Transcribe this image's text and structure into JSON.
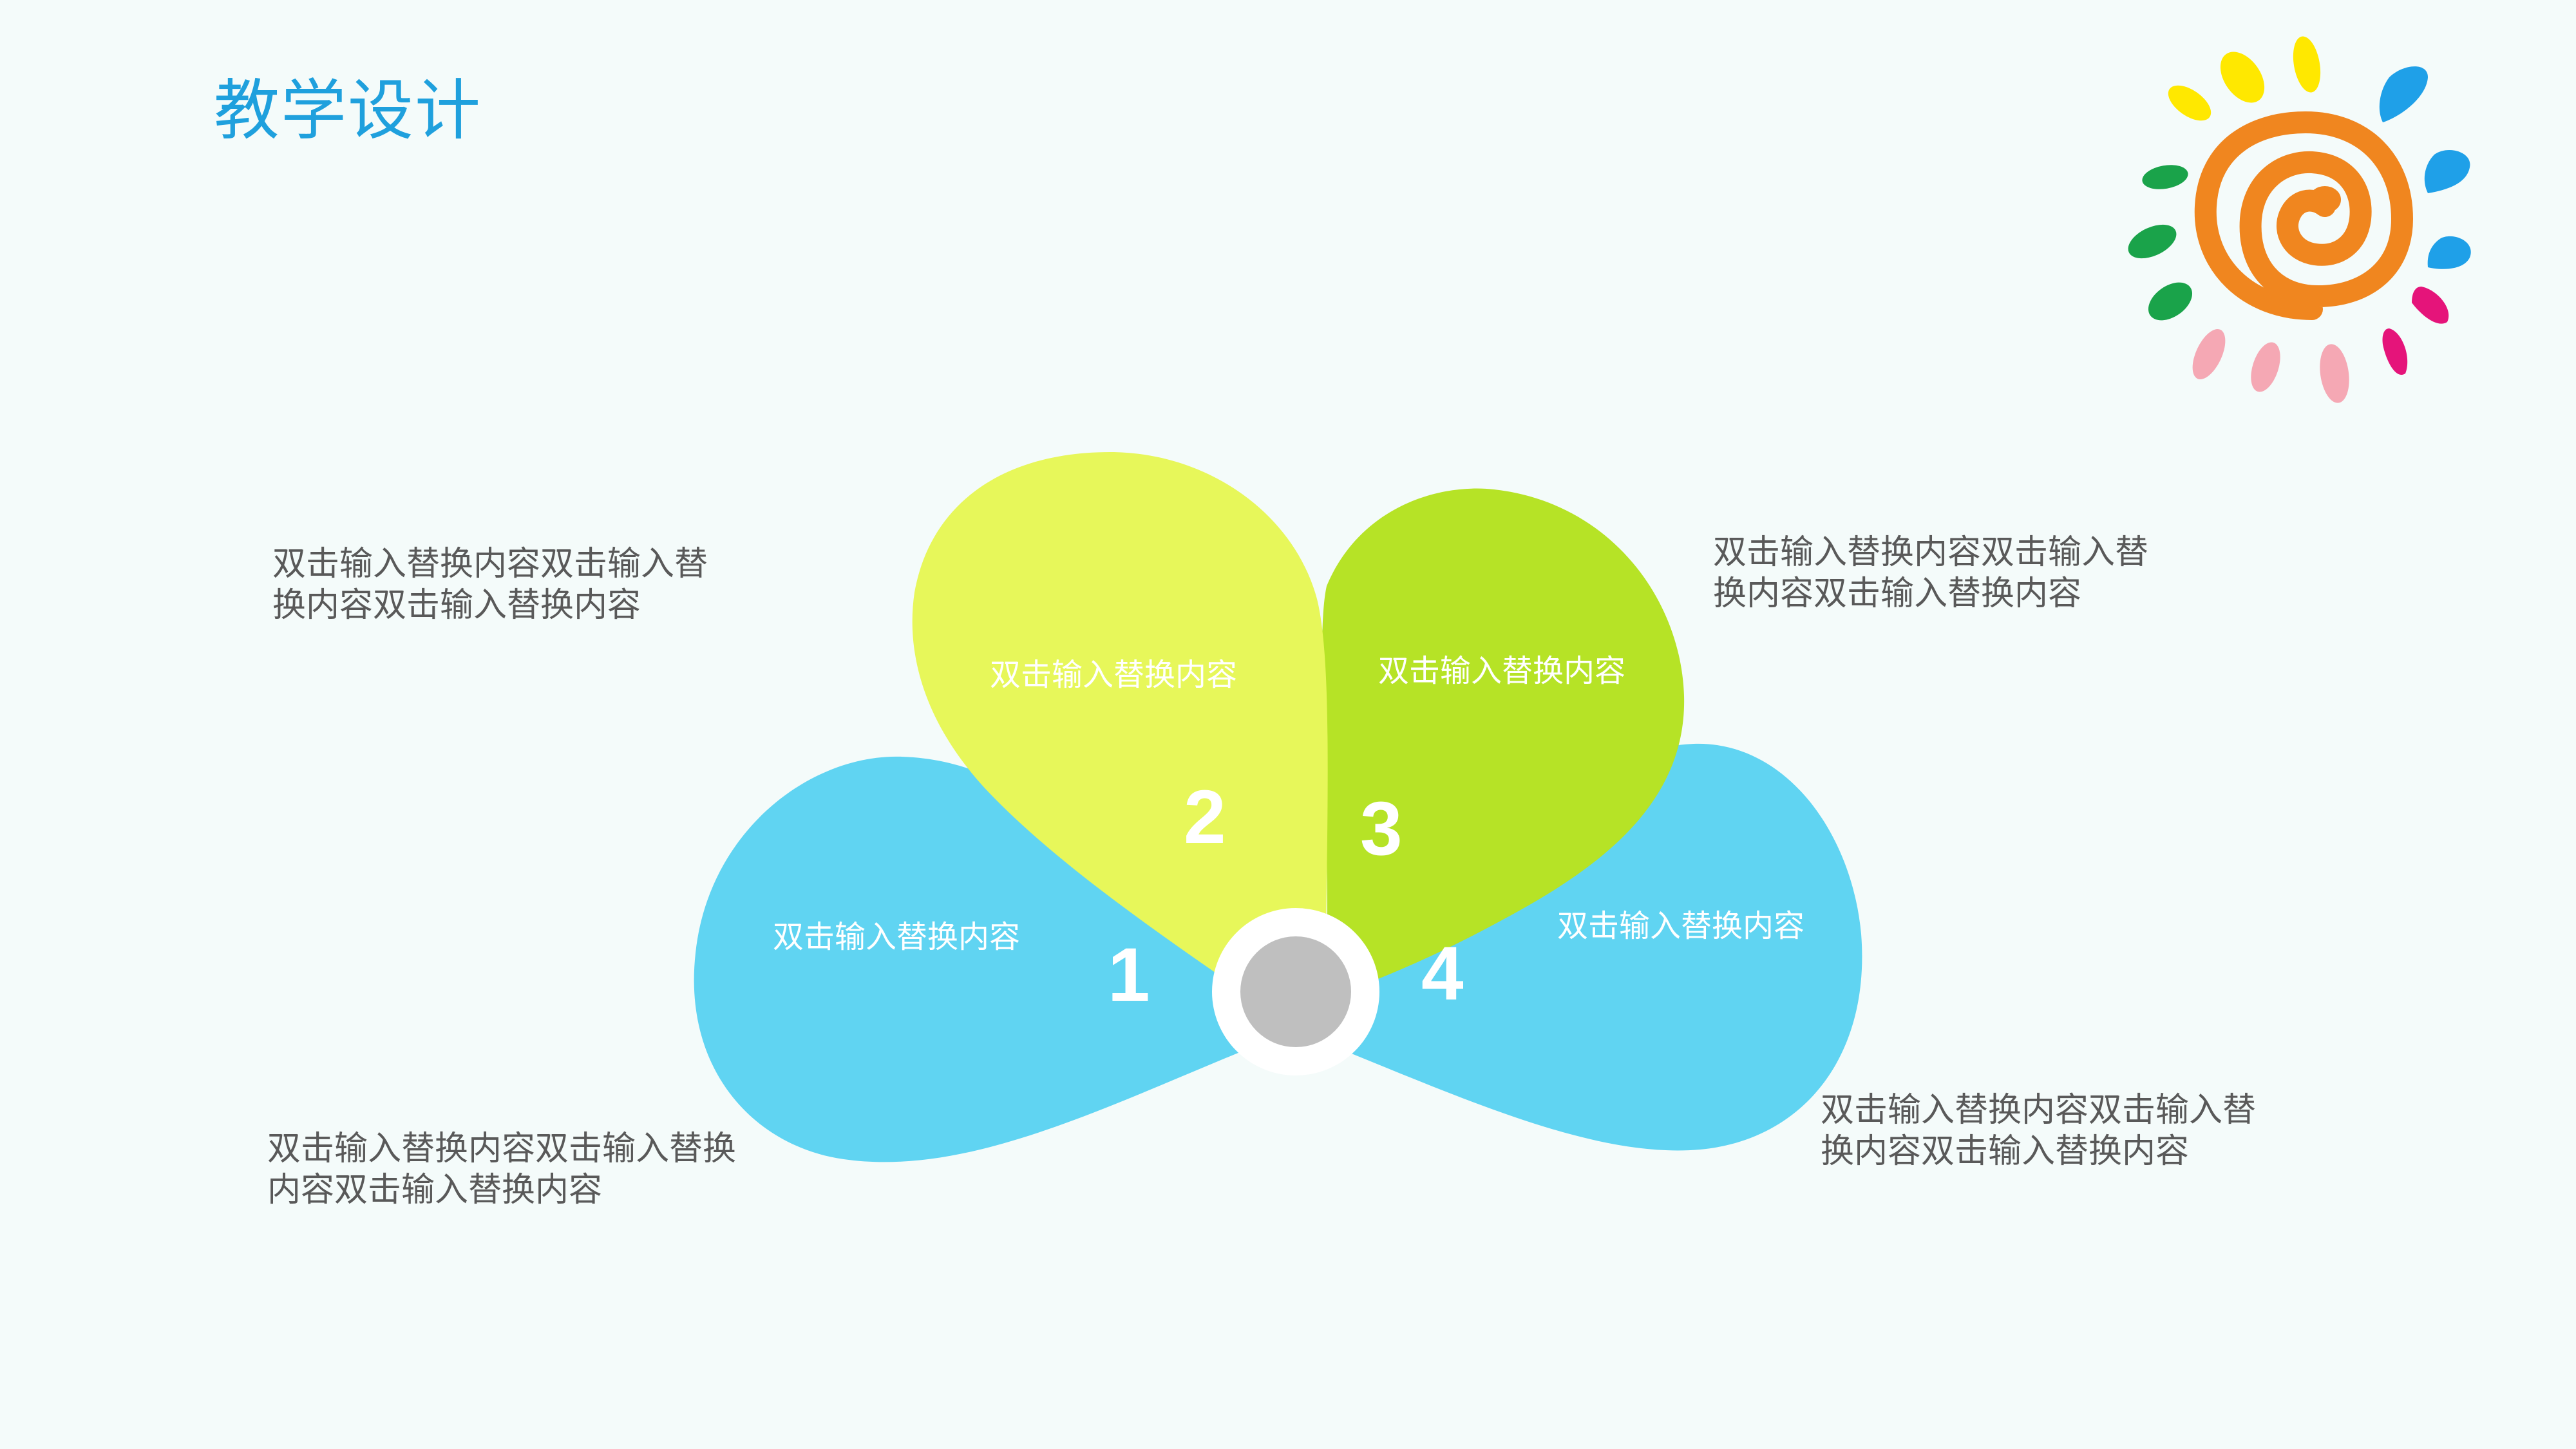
{
  "title": "教学设计",
  "colors": {
    "title": "#1fa0dd",
    "petal_blue": "#60d4f2",
    "petal_yellow": "#e7f75a",
    "petal_green": "#b6e326",
    "center_dot": "#bfbfbf",
    "side_text": "#595959",
    "sun_spiral": "#f0861f"
  },
  "petals": [
    {
      "number": "1",
      "label": "双击输入替换内容"
    },
    {
      "number": "2",
      "label": "双击输入替换内容"
    },
    {
      "number": "3",
      "label": "双击输入替换内容"
    },
    {
      "number": "4",
      "label": "双击输入替换内容"
    }
  ],
  "side_texts": {
    "top_left": "双击输入替换内容双击输入替换内容双击输入替换内容",
    "bottom_left": "双击输入替换内容双击输入替换内容双击输入替换内容",
    "top_right": "双击输入替换内容双击输入替换内容双击输入替换内容",
    "bottom_right": "双击输入替换内容双击输入替换内容双击输入替换内容"
  },
  "icons": [
    "sun-icon"
  ]
}
